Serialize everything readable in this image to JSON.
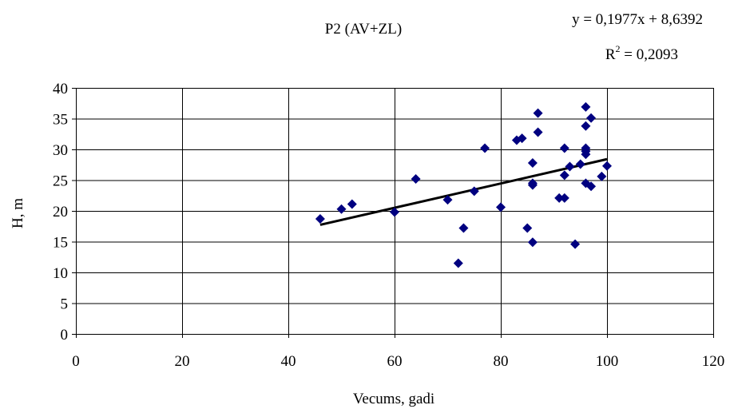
{
  "chart_data": {
    "type": "scatter",
    "title": "P2 (AV+ZL)",
    "xlabel": "Vecums, gadi",
    "ylabel": "H, m",
    "xlim": [
      0,
      120
    ],
    "ylim": [
      0,
      40
    ],
    "x_ticks": [
      "0",
      "20",
      "40",
      "60",
      "80",
      "100",
      "120"
    ],
    "y_ticks": [
      "0",
      "5",
      "10",
      "15",
      "20",
      "25",
      "30",
      "35",
      "40"
    ],
    "grid": {
      "horizontal": true,
      "vertical": true
    },
    "marker": "diamond",
    "marker_color": "#000080",
    "trendline": {
      "type": "linear",
      "slope": 0.1977,
      "intercept": 8.6392,
      "x_range": [
        46,
        100
      ],
      "color": "#000000",
      "equation_label": "y = 0,1977x + 8,6392",
      "r2_label_prefix": "R",
      "r2_label_suffix": " = 0,2093"
    },
    "points": [
      {
        "x": 46,
        "y": 18.7
      },
      {
        "x": 50,
        "y": 20.3
      },
      {
        "x": 52,
        "y": 21.1
      },
      {
        "x": 60,
        "y": 19.8
      },
      {
        "x": 64,
        "y": 25.2
      },
      {
        "x": 70,
        "y": 21.8
      },
      {
        "x": 72,
        "y": 11.5
      },
      {
        "x": 73,
        "y": 17.2
      },
      {
        "x": 75,
        "y": 23.2
      },
      {
        "x": 77,
        "y": 30.2
      },
      {
        "x": 80,
        "y": 20.6
      },
      {
        "x": 83,
        "y": 31.5
      },
      {
        "x": 84,
        "y": 31.8
      },
      {
        "x": 85,
        "y": 17.2
      },
      {
        "x": 86,
        "y": 27.8
      },
      {
        "x": 86,
        "y": 24.5
      },
      {
        "x": 86,
        "y": 24.2
      },
      {
        "x": 86,
        "y": 14.9
      },
      {
        "x": 87,
        "y": 35.9
      },
      {
        "x": 87,
        "y": 32.8
      },
      {
        "x": 91,
        "y": 22.1
      },
      {
        "x": 92,
        "y": 30.2
      },
      {
        "x": 92,
        "y": 25.8
      },
      {
        "x": 92,
        "y": 22.1
      },
      {
        "x": 93,
        "y": 27.2
      },
      {
        "x": 94,
        "y": 14.6
      },
      {
        "x": 95,
        "y": 27.6
      },
      {
        "x": 96,
        "y": 36.9
      },
      {
        "x": 96,
        "y": 33.8
      },
      {
        "x": 96,
        "y": 30.2
      },
      {
        "x": 96,
        "y": 29.7
      },
      {
        "x": 96,
        "y": 29.2
      },
      {
        "x": 96,
        "y": 24.5
      },
      {
        "x": 97,
        "y": 35.1
      },
      {
        "x": 97,
        "y": 24.0
      },
      {
        "x": 99,
        "y": 25.6
      },
      {
        "x": 100,
        "y": 27.3
      }
    ]
  }
}
